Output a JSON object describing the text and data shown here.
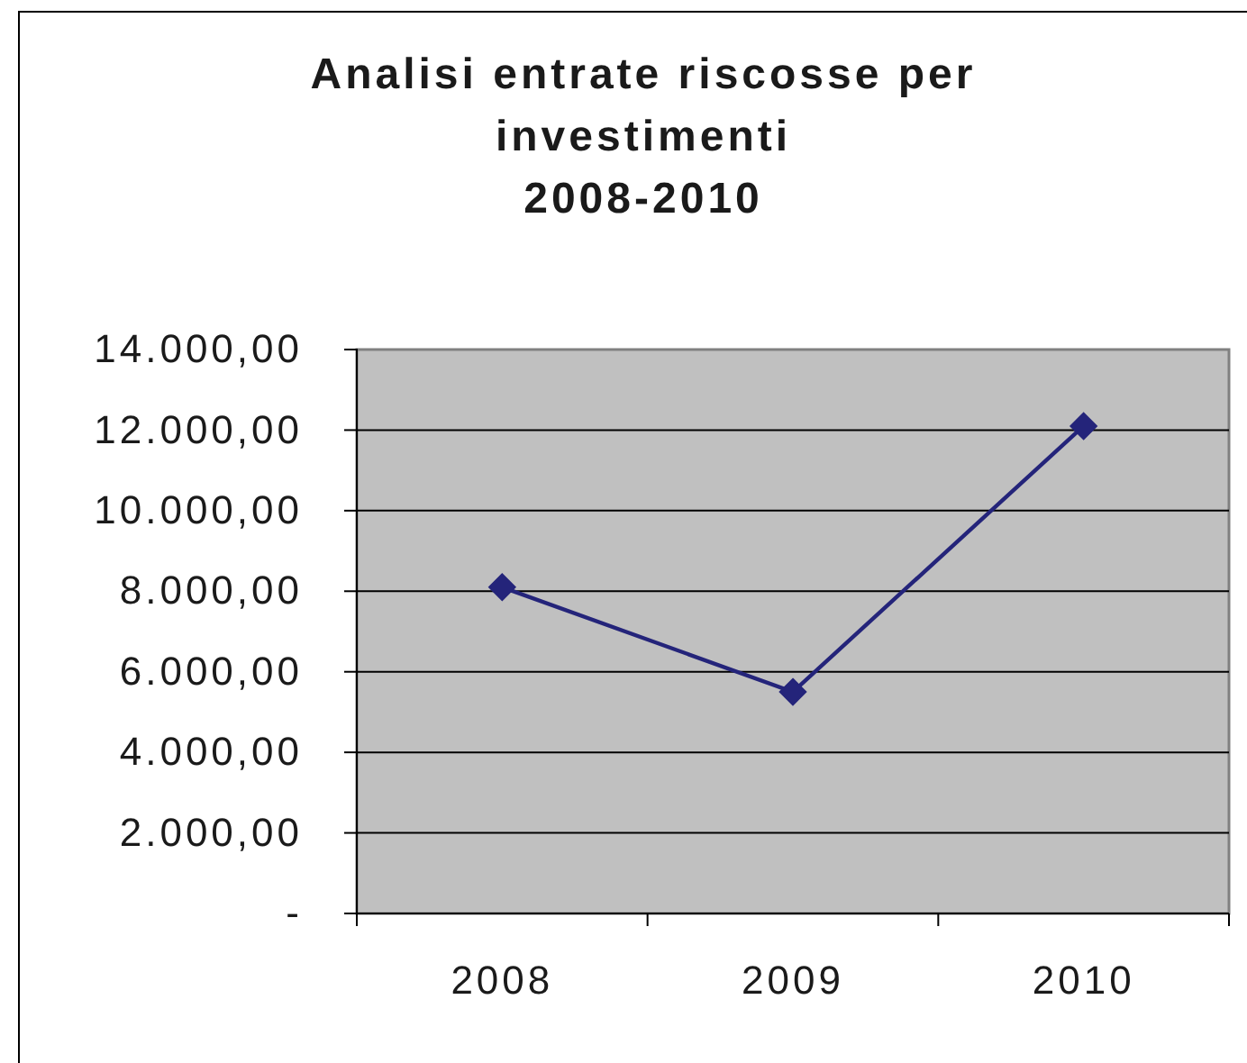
{
  "chart_data": {
    "type": "line",
    "title": "Analisi entrate riscosse per\ninvestimenti\n2008-2010",
    "categories": [
      "2008",
      "2009",
      "2010"
    ],
    "series": [
      {
        "color": "#24247a",
        "values": [
          8100,
          5500,
          12100
        ]
      }
    ],
    "ylim": [
      0,
      14000
    ],
    "yticks": [
      {
        "value": 0,
        "label": "-"
      },
      {
        "value": 2000,
        "label": "2.000,00"
      },
      {
        "value": 4000,
        "label": "4.000,00"
      },
      {
        "value": 6000,
        "label": "6.000,00"
      },
      {
        "value": 8000,
        "label": "8.000,00"
      },
      {
        "value": 10000,
        "label": "10.000,00"
      },
      {
        "value": 12000,
        "label": "12.000,00"
      },
      {
        "value": 14000,
        "label": "14.000,00"
      }
    ],
    "grid": "y",
    "marker": "diamond",
    "line_style": "solid"
  }
}
